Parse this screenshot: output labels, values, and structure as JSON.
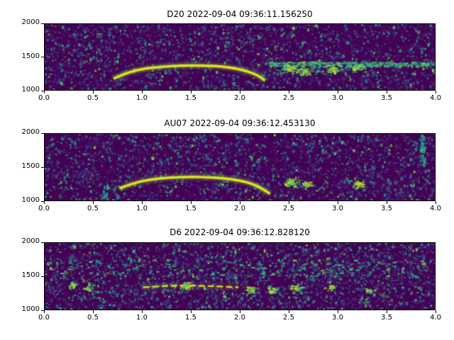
{
  "figure": {
    "background": "#ffffff"
  },
  "palette": {
    "viridis_low": "#440154",
    "viridis_patch": "#482878",
    "noise_colors": [
      "#46327e",
      "#3e4a89",
      "#31688e",
      "#2a788e",
      "#23888e",
      "#1f988b",
      "#22a884",
      "#35b779",
      "#54c568",
      "#7ad151"
    ],
    "chirp_glow": "#9fda3a",
    "chirp_main": "#c8e020",
    "chirp_core": "#ece51b",
    "band_colors": [
      "#1f988b",
      "#22a884",
      "#35b779",
      "#54c568",
      "#7ad151"
    ],
    "blob_colors": [
      "#4ac16d",
      "#7ad151",
      "#a0da39",
      "#d2e21b"
    ],
    "streak_colors": [
      "#23888e",
      "#1f988b",
      "#22a884",
      "#35b779"
    ]
  },
  "chart_data": [
    {
      "type": "heatmap",
      "title": "D20 2022-09-04 09:36:11.156250",
      "colormap": "viridis",
      "xlim": [
        0.0,
        4.0
      ],
      "ylim": [
        1000,
        2000
      ],
      "xtick_values": [
        0,
        0.5,
        1,
        1.5,
        2,
        2.5,
        3,
        3.5,
        4
      ],
      "xtick_labels": [
        "0.0",
        "0.5",
        "1.0",
        "1.5",
        "2.0",
        "2.5",
        "3.0",
        "3.5",
        "4.0"
      ],
      "ytick_values": [
        2000,
        1500,
        1000
      ],
      "ytick_labels": [
        "2000",
        "1500",
        "1000"
      ],
      "noise": {
        "seed": 11,
        "density": 2800,
        "bright_bias": 2.2
      },
      "features": [
        {
          "kind": "arc",
          "points": [
            [
              0.72,
              1185
            ],
            [
              0.85,
              1268
            ],
            [
              1.0,
              1322
            ],
            [
              1.2,
              1356
            ],
            [
              1.4,
              1372
            ],
            [
              1.6,
              1374
            ],
            [
              1.8,
              1362
            ],
            [
              1.95,
              1332
            ],
            [
              2.08,
              1288
            ],
            [
              2.18,
              1232
            ],
            [
              2.25,
              1160
            ]
          ]
        },
        {
          "kind": "band",
          "y": 1400,
          "x0": 2.28,
          "x1": 4.0,
          "jitter": 70,
          "intensity": 1.0
        },
        {
          "kind": "band",
          "y": 1330,
          "x0": 2.35,
          "x1": 3.3,
          "jitter": 80,
          "intensity": 0.3
        },
        {
          "kind": "blob",
          "x": 2.5,
          "y": 1330,
          "r": 0.09,
          "count": 40
        },
        {
          "kind": "blob",
          "x": 2.66,
          "y": 1295,
          "r": 0.07,
          "count": 30
        },
        {
          "kind": "blob",
          "x": 2.95,
          "y": 1310,
          "r": 0.06,
          "count": 22
        },
        {
          "kind": "blob",
          "x": 3.18,
          "y": 1345,
          "r": 0.06,
          "count": 20
        }
      ]
    },
    {
      "type": "heatmap",
      "title": "AU07 2022-09-04 09:36:12.453130",
      "colormap": "viridis",
      "xlim": [
        0.0,
        4.0
      ],
      "ylim": [
        1000,
        2000
      ],
      "xtick_values": [
        0,
        0.5,
        1,
        1.5,
        2,
        2.5,
        3,
        3.5,
        4
      ],
      "xtick_labels": [
        "0.0",
        "0.5",
        "1.0",
        "1.5",
        "2.0",
        "2.5",
        "3.0",
        "3.5",
        "4.0"
      ],
      "ytick_values": [
        2000,
        1500,
        1000
      ],
      "ytick_labels": [
        "2000",
        "1500",
        "1000"
      ],
      "noise": {
        "seed": 22,
        "density": 2800,
        "bright_bias": 2.2
      },
      "features": [
        {
          "kind": "arc",
          "points": [
            [
              0.78,
              1195
            ],
            [
              0.92,
              1268
            ],
            [
              1.08,
              1318
            ],
            [
              1.28,
              1348
            ],
            [
              1.48,
              1358
            ],
            [
              1.68,
              1352
            ],
            [
              1.85,
              1336
            ],
            [
              2.0,
              1305
            ],
            [
              2.12,
              1258
            ],
            [
              2.22,
              1192
            ],
            [
              2.3,
              1115
            ]
          ]
        },
        {
          "kind": "blob",
          "x": 2.52,
          "y": 1285,
          "r": 0.09,
          "count": 38
        },
        {
          "kind": "blob",
          "x": 2.68,
          "y": 1258,
          "r": 0.06,
          "count": 24
        },
        {
          "kind": "blob",
          "x": 3.2,
          "y": 1262,
          "r": 0.07,
          "count": 30
        },
        {
          "kind": "streak",
          "x": 3.86,
          "y0": 1530,
          "y1": 2000,
          "count": 60
        },
        {
          "kind": "streak",
          "x": 0.62,
          "y0": 1020,
          "y1": 1250,
          "count": 25
        }
      ]
    },
    {
      "type": "heatmap",
      "title": "D6 2022-09-04 09:36:12.828120",
      "colormap": "viridis",
      "xlim": [
        0.0,
        4.0
      ],
      "ylim": [
        1000,
        2000
      ],
      "xtick_values": [
        0,
        0.5,
        1,
        1.5,
        2,
        2.5,
        3,
        3.5,
        4
      ],
      "xtick_labels": [
        "0.0",
        "0.5",
        "1.0",
        "1.5",
        "2.0",
        "2.5",
        "3.0",
        "3.5",
        "4.0"
      ],
      "ytick_values": [
        2000,
        1500,
        1000
      ],
      "ytick_labels": [
        "2000",
        "1500",
        "1000"
      ],
      "noise": {
        "seed": 33,
        "density": 3200,
        "bright_bias": 1.7
      },
      "features": [
        {
          "kind": "arc",
          "broken": true,
          "alpha": 0.85,
          "points": [
            [
              1.02,
              1338
            ],
            [
              1.2,
              1355
            ],
            [
              1.4,
              1364
            ],
            [
              1.6,
              1360
            ],
            [
              1.78,
              1350
            ],
            [
              1.98,
              1338
            ]
          ]
        },
        {
          "kind": "blob",
          "x": 1.45,
          "y": 1362,
          "r": 0.08,
          "count": 26
        },
        {
          "kind": "blob",
          "x": 2.1,
          "y": 1300,
          "r": 0.07,
          "count": 22
        },
        {
          "kind": "blob",
          "x": 2.32,
          "y": 1310,
          "r": 0.06,
          "count": 18
        },
        {
          "kind": "blob",
          "x": 2.58,
          "y": 1338,
          "r": 0.07,
          "count": 20
        },
        {
          "kind": "blob",
          "x": 0.45,
          "y": 1330,
          "r": 0.07,
          "count": 20
        },
        {
          "kind": "blob",
          "x": 0.28,
          "y": 1368,
          "r": 0.05,
          "count": 14
        },
        {
          "kind": "blob",
          "x": 2.92,
          "y": 1345,
          "r": 0.06,
          "count": 16
        },
        {
          "kind": "blob",
          "x": 3.3,
          "y": 1290,
          "r": 0.05,
          "count": 12
        },
        {
          "kind": "band",
          "y": 1620,
          "x0": 0.1,
          "x1": 3.9,
          "jitter": 260,
          "intensity": 0.25
        }
      ]
    }
  ]
}
